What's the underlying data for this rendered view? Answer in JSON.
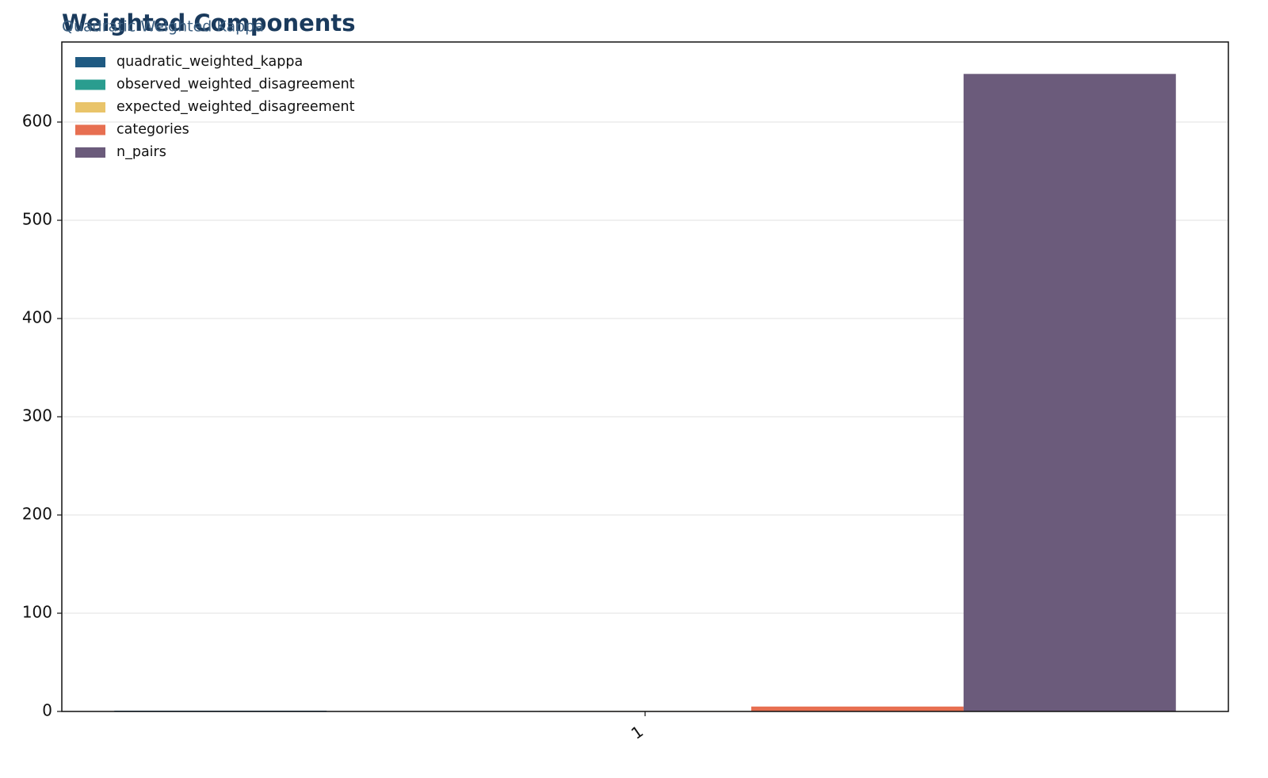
{
  "chart_data": {
    "type": "bar",
    "title": "Weighted Components",
    "subtitle": "Quadratic Weighted Kappa",
    "categories": [
      "1"
    ],
    "series": [
      {
        "name": "quadratic_weighted_kappa",
        "color": "#1f5a82",
        "values": [
          0.8
        ]
      },
      {
        "name": "observed_weighted_disagreement",
        "color": "#2a9d8f",
        "values": [
          0.1
        ]
      },
      {
        "name": "expected_weighted_disagreement",
        "color": "#e9c46a",
        "values": [
          0.5
        ]
      },
      {
        "name": "categories",
        "color": "#e76f51",
        "values": [
          5
        ]
      },
      {
        "name": "n_pairs",
        "color": "#6b5b7b",
        "values": [
          649
        ]
      }
    ],
    "ylim": [
      0,
      681.5
    ],
    "yticks": [
      0,
      100,
      200,
      300,
      400,
      500,
      600
    ],
    "grid": true,
    "legend": "upper-left"
  }
}
